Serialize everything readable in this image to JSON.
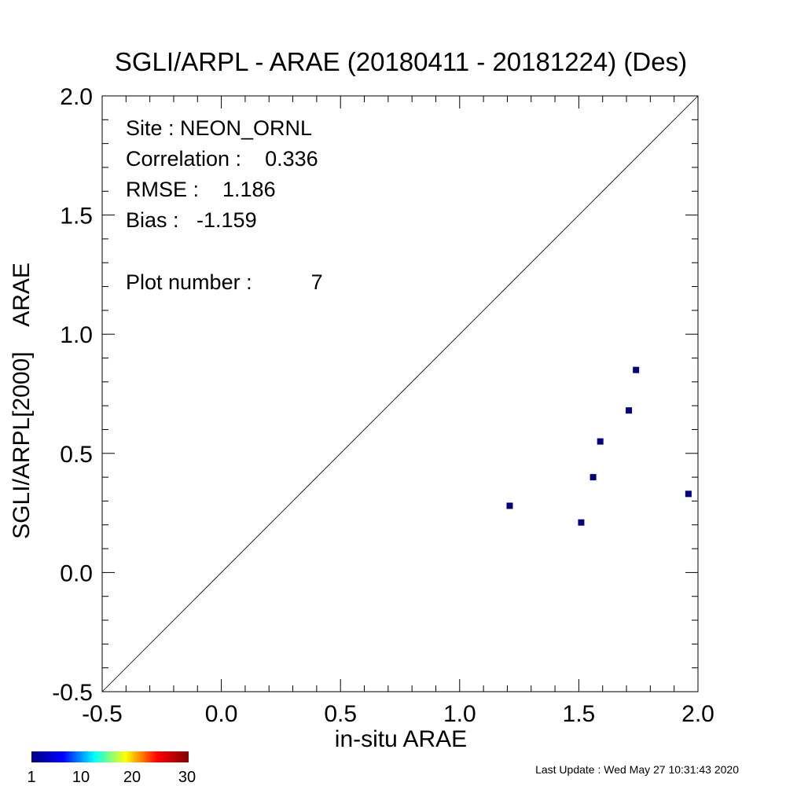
{
  "chart_data": {
    "type": "scatter",
    "title": "SGLI/ARPL - ARAE (20180411 - 20181224) (Des)",
    "xlabel": "in-situ ARAE",
    "ylabel": "SGLI/ARPL[2000]    ARAE",
    "xlim": [
      -0.5,
      2.0
    ],
    "ylim": [
      -0.5,
      2.0
    ],
    "xticks": [
      "-0.5",
      "0.0",
      "0.5",
      "1.0",
      "1.5",
      "2.0"
    ],
    "yticks": [
      "-0.5",
      "0.0",
      "0.5",
      "1.0",
      "1.5",
      "2.0"
    ],
    "one_to_one_line": true,
    "point_color": "#000080",
    "points": [
      {
        "x": 1.21,
        "y": 0.28
      },
      {
        "x": 1.51,
        "y": 0.21
      },
      {
        "x": 1.56,
        "y": 0.4
      },
      {
        "x": 1.59,
        "y": 0.55
      },
      {
        "x": 1.71,
        "y": 0.68
      },
      {
        "x": 1.74,
        "y": 0.85
      },
      {
        "x": 1.96,
        "y": 0.33
      }
    ],
    "annotations": [
      "Site : NEON_ORNL",
      "Correlation :    0.336",
      "RMSE :    1.186",
      "Bias :   -1.159",
      "Plot number :          7"
    ],
    "colorbar": {
      "ticks": [
        "1",
        "10",
        "20",
        "30"
      ],
      "colors": [
        "#000080",
        "#0000ff",
        "#00ffff",
        "#ffff00",
        "#ff0000",
        "#800000"
      ]
    }
  },
  "footer": {
    "last_update": "Last Update : Wed May 27 10:31:43 2020"
  }
}
